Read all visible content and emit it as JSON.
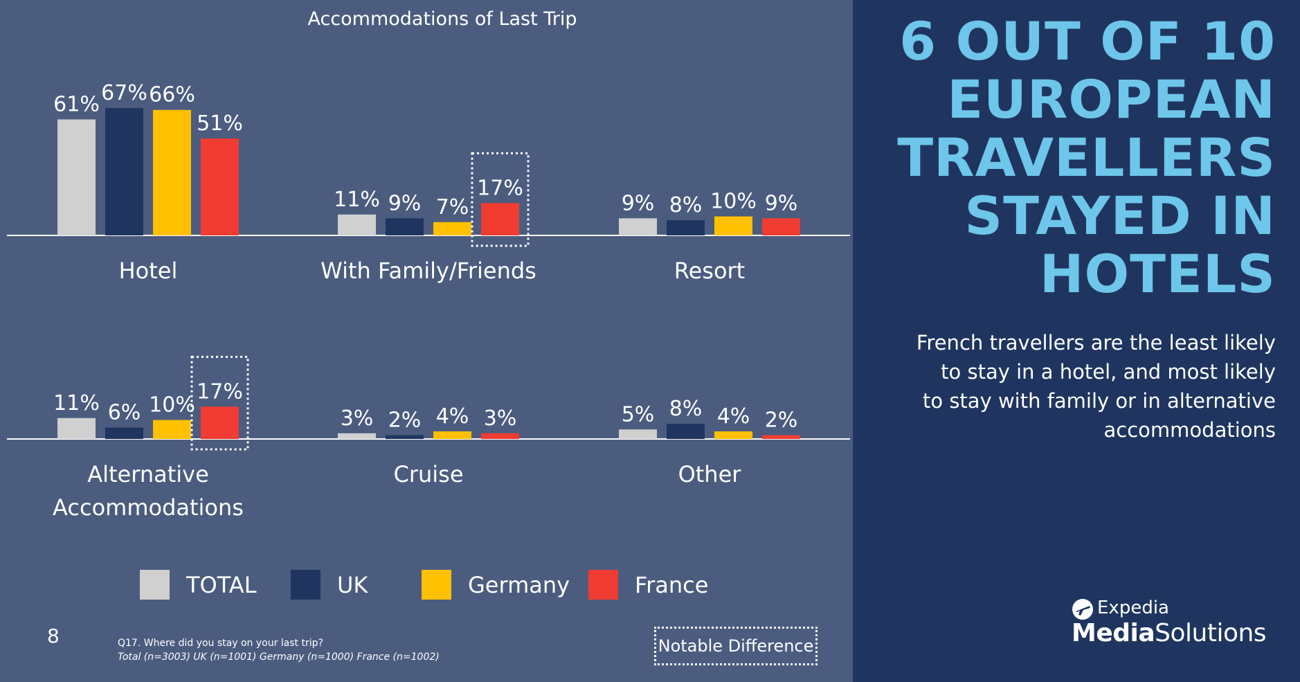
{
  "page": {
    "number": "8",
    "headline": "6 OUT OF 10 EUROPEAN TRAVELLERS STAYED IN HOTELS",
    "subtext": "French travellers are the least likely to stay in a hotel, and most likely to stay with family or in alternative accommodations",
    "footnote_question": "Q17. Where did you stay on your last trip?",
    "footnote_sample": "Total (n=3003) UK (n=1001) Germany (n=1000) France (n=1002)",
    "notable_label": "Notable Difference",
    "logo_top": "Expedia",
    "logo_bottom_1": "Media",
    "logo_bottom_2": "Solutions"
  },
  "colors": {
    "TOTAL": "#d0d0d0",
    "UK": "#1f3560",
    "Germany": "#ffc000",
    "France": "#f03c32",
    "headline": "#6ec6ea"
  },
  "chart_data": {
    "type": "bar",
    "title": "Accommodations of Last Trip",
    "series_names": [
      "TOTAL",
      "UK",
      "Germany",
      "France"
    ],
    "unit": "%",
    "ylim": [
      0,
      70
    ],
    "grid": false,
    "legend": "bottom",
    "groups": [
      {
        "category": [
          "Hotel"
        ],
        "values": [
          61,
          67,
          66,
          51
        ],
        "highlight": null
      },
      {
        "category": [
          "With Family/Friends"
        ],
        "values": [
          11,
          9,
          7,
          17
        ],
        "highlight": 3
      },
      {
        "category": [
          "Resort"
        ],
        "values": [
          9,
          8,
          10,
          9
        ],
        "highlight": null
      },
      {
        "category": [
          "Alternative",
          "Accommodations"
        ],
        "values": [
          11,
          6,
          10,
          17
        ],
        "highlight": 3
      },
      {
        "category": [
          "Cruise"
        ],
        "values": [
          3,
          2,
          4,
          3
        ],
        "highlight": null
      },
      {
        "category": [
          "Other"
        ],
        "values": [
          5,
          8,
          4,
          2
        ],
        "highlight": null
      }
    ]
  }
}
